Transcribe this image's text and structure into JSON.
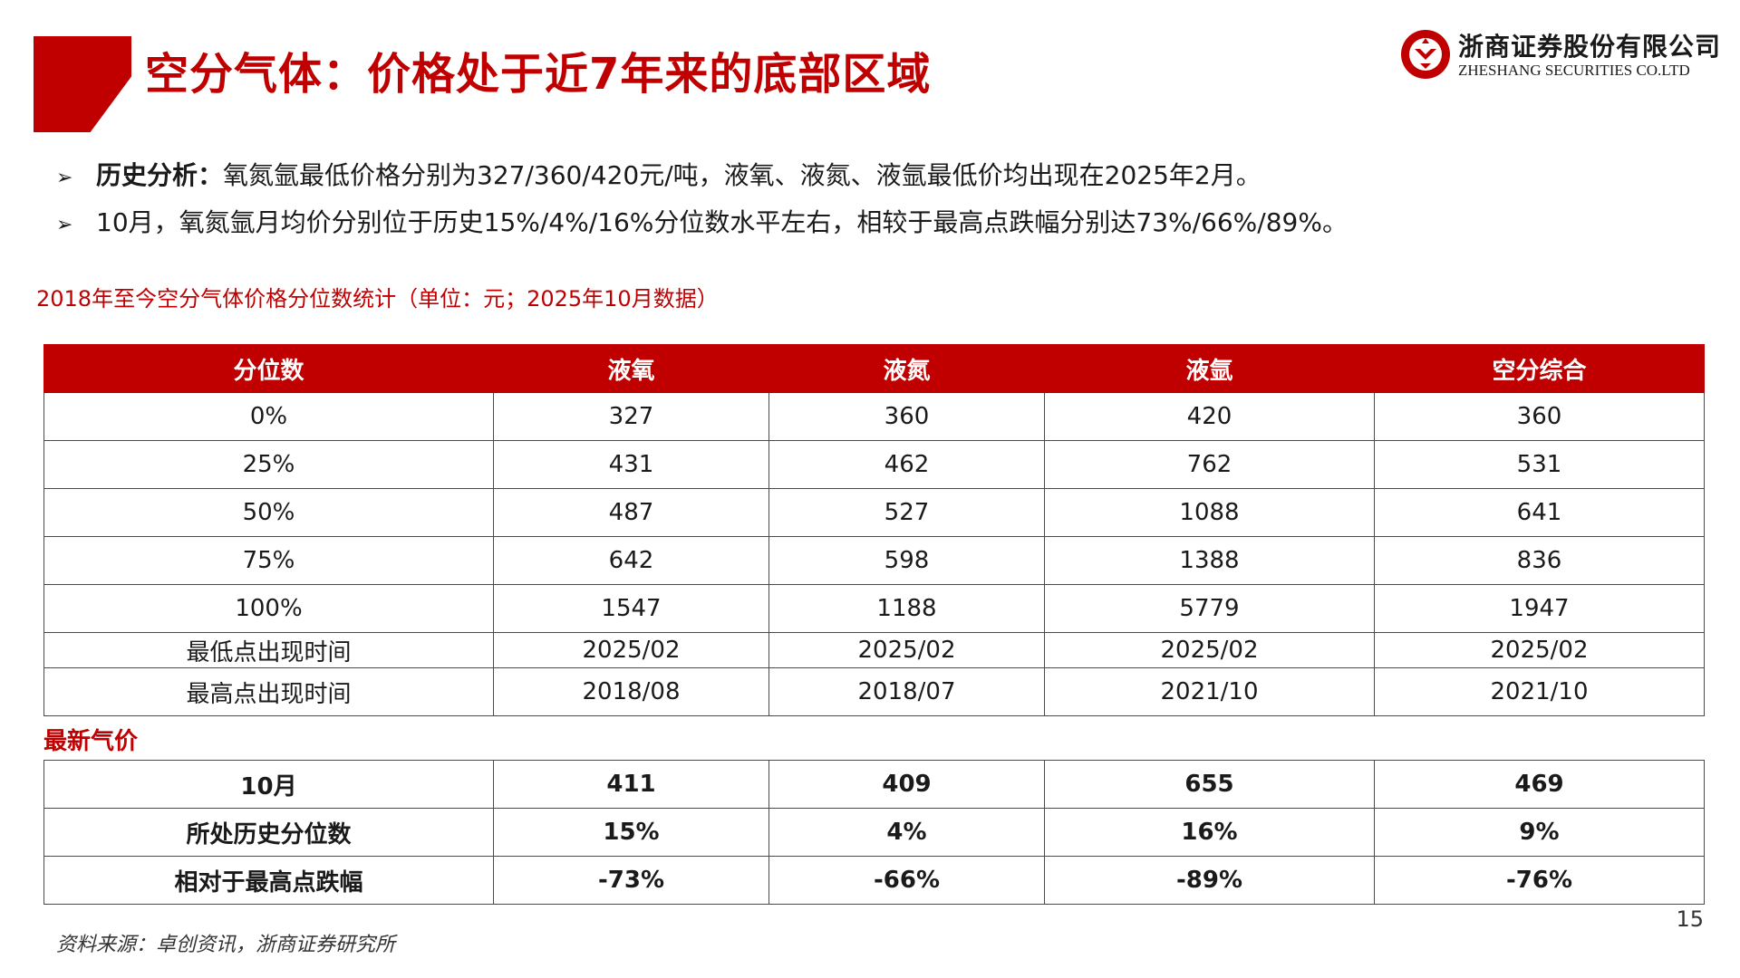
{
  "header": {
    "title": "空分气体：价格处于近7年来的底部区域",
    "logo": {
      "name_cn": "浙商证券股份有限公司",
      "name_en": "ZHESHANG SECURITIES CO.LTD"
    }
  },
  "bullets": [
    {
      "lead": "历史分析：",
      "text": "氧氮氩最低价格分别为327/360/420元/吨，液氧、液氮、液氩最低价均出现在2025年2月。"
    },
    {
      "lead": "",
      "text": "10月，氧氮氩月均价分别位于历史15%/4%/16%分位数水平左右，相较于最高点跌幅分别达73%/66%/89%。"
    }
  ],
  "table_caption": "2018年至今空分气体价格分位数统计（单位：元；2025年10月数据）",
  "main_table": {
    "headers": [
      "分位数",
      "液氧",
      "液氮",
      "液氩",
      "空分综合"
    ],
    "rows": [
      [
        "0%",
        "327",
        "360",
        "420",
        "360"
      ],
      [
        "25%",
        "431",
        "462",
        "762",
        "531"
      ],
      [
        "50%",
        "487",
        "527",
        "1088",
        "641"
      ],
      [
        "75%",
        "642",
        "598",
        "1388",
        "836"
      ],
      [
        "100%",
        "1547",
        "1188",
        "5779",
        "1947"
      ],
      [
        "最低点出现时间",
        "2025/02",
        "2025/02",
        "2025/02",
        "2025/02"
      ],
      [
        "最高点出现时间",
        "2018/08",
        "2018/07",
        "2021/10",
        "2021/10"
      ]
    ]
  },
  "latest_section_label": "最新气价",
  "latest_table": {
    "rows": [
      [
        "10月",
        "411",
        "409",
        "655",
        "469"
      ],
      [
        "所处历史分位数",
        "15%",
        "4%",
        "16%",
        "9%"
      ],
      [
        "相对于最高点跌幅",
        "-73%",
        "-66%",
        "-89%",
        "-76%"
      ]
    ]
  },
  "footnote": "资料来源：卓创资讯，浙商证券研究所",
  "page_number": "15",
  "colors": {
    "accent": "#c00000",
    "text": "#1a1a1a"
  }
}
